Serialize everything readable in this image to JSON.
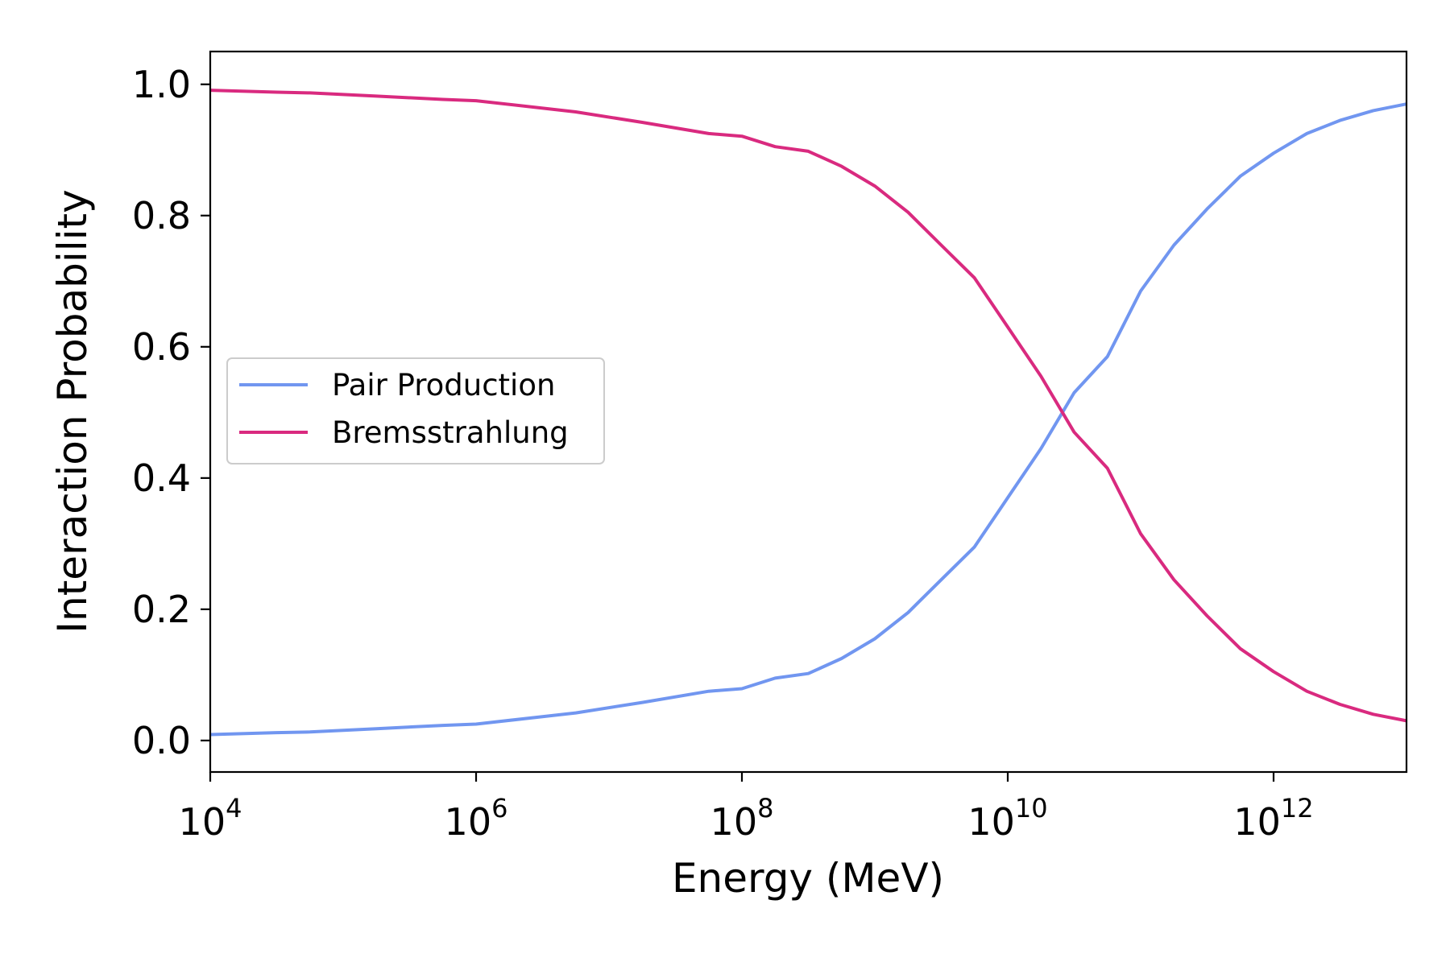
{
  "chart_data": {
    "type": "line",
    "xlabel": "Energy (MeV)",
    "ylabel": "Interaction Probability",
    "xscale": "log",
    "xlim": [
      10000,
      10000000000000
    ],
    "ylim": [
      -0.048,
      1.05
    ],
    "grid": false,
    "legend_position": "center-left",
    "x_ticks": [
      {
        "base": "10",
        "exp": "4",
        "value": 10000
      },
      {
        "base": "10",
        "exp": "6",
        "value": 1000000
      },
      {
        "base": "10",
        "exp": "8",
        "value": 100000000
      },
      {
        "base": "10",
        "exp": "10",
        "value": 10000000000
      },
      {
        "base": "10",
        "exp": "12",
        "value": 1000000000000
      }
    ],
    "y_ticks": [
      {
        "label": "0.0",
        "value": 0.0
      },
      {
        "label": "0.2",
        "value": 0.2
      },
      {
        "label": "0.4",
        "value": 0.4
      },
      {
        "label": "0.6",
        "value": 0.6
      },
      {
        "label": "0.8",
        "value": 0.8
      },
      {
        "label": "1.0",
        "value": 1.0
      }
    ],
    "x": [
      10000,
      31600,
      56200,
      178000,
      562000,
      1000000,
      5620000,
      17800000,
      56200000,
      100000000,
      178000000,
      316000000,
      562000000,
      1000000000,
      1780000000,
      3160000000,
      5620000000,
      10000000000,
      17800000000,
      31600000000,
      56200000000,
      100000000000,
      178000000000,
      316000000000,
      562000000000,
      1000000000000,
      1780000000000,
      3160000000000,
      5620000000000,
      10000000000000
    ],
    "series": [
      {
        "name": "Pair Production",
        "color": "#7196f0",
        "values": [
          0.009,
          0.012,
          0.013,
          0.018,
          0.023,
          0.025,
          0.042,
          0.058,
          0.075,
          0.079,
          0.095,
          0.102,
          0.125,
          0.155,
          0.195,
          0.245,
          0.295,
          0.37,
          0.445,
          0.53,
          0.585,
          0.685,
          0.755,
          0.81,
          0.86,
          0.895,
          0.925,
          0.945,
          0.96,
          0.97
        ],
        "values_note": ""
      },
      {
        "name": "Bremsstrahlung",
        "color": "#d92a7f",
        "values": [
          0.991,
          0.988,
          0.987,
          0.982,
          0.977,
          0.975,
          0.958,
          0.942,
          0.925,
          0.921,
          0.905,
          0.898,
          0.875,
          0.845,
          0.805,
          0.755,
          0.705,
          0.63,
          0.555,
          0.47,
          0.415,
          0.315,
          0.245,
          0.19,
          0.14,
          0.105,
          0.075,
          0.055,
          0.04,
          0.03
        ]
      }
    ]
  }
}
